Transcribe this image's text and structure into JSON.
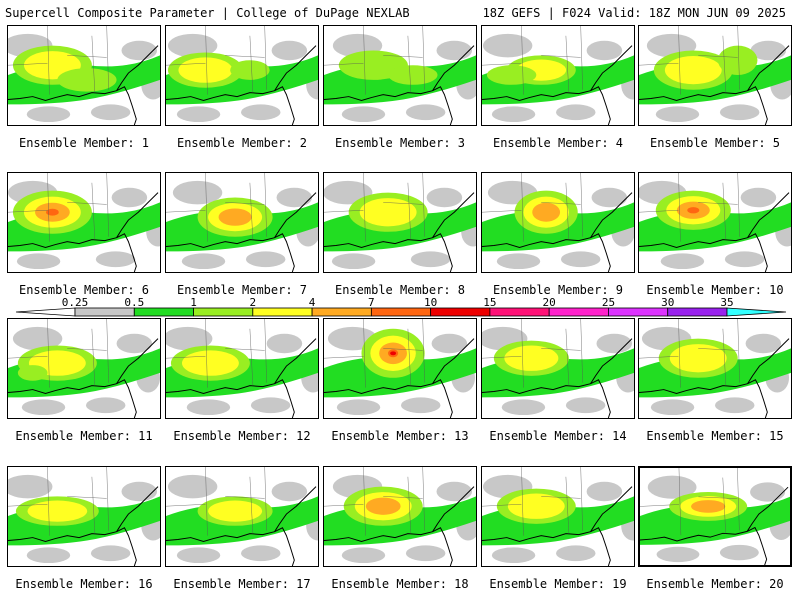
{
  "header": {
    "title": "Supercell Composite Parameter | College of DuPage NEXLAB",
    "valid": "18Z GEFS | F024 Valid: 18Z MON JUN 09 2025"
  },
  "colorbar": {
    "levels": [
      "0.25",
      "0.5",
      "1",
      "2",
      "4",
      "7",
      "10",
      "15",
      "20",
      "25",
      "30",
      "35"
    ],
    "colors": [
      "#c8c8c8",
      "#22dd22",
      "#99ee22",
      "#ffff22",
      "#ffaa22",
      "#ff6611",
      "#ee0000",
      "#ff1177",
      "#ff22cc",
      "#dd33ff",
      "#9922ee",
      "#aa66dd",
      "#33ffff"
    ]
  },
  "members": [
    {
      "label": "Ensemble Member: 1",
      "blobs": [
        [
          45,
          40,
          40,
          20,
          2
        ],
        [
          80,
          55,
          30,
          12,
          1
        ]
      ]
    },
    {
      "label": "Ensemble Member: 2",
      "blobs": [
        [
          40,
          45,
          38,
          18,
          2
        ],
        [
          85,
          45,
          20,
          10,
          1
        ]
      ]
    },
    {
      "label": "Ensemble Member: 3",
      "blobs": [
        [
          50,
          40,
          35,
          15,
          1
        ],
        [
          90,
          50,
          25,
          10,
          1
        ]
      ]
    },
    {
      "label": "Ensemble Member: 4",
      "blobs": [
        [
          60,
          45,
          35,
          15,
          2
        ],
        [
          30,
          50,
          25,
          10,
          1
        ]
      ]
    },
    {
      "label": "Ensemble Member: 5",
      "blobs": [
        [
          55,
          45,
          40,
          20,
          2
        ],
        [
          100,
          35,
          20,
          15,
          1
        ]
      ]
    },
    {
      "label": "Ensemble Member: 6",
      "blobs": [
        [
          45,
          40,
          40,
          22,
          4
        ]
      ]
    },
    {
      "label": "Ensemble Member: 7",
      "blobs": [
        [
          70,
          45,
          38,
          20,
          3
        ]
      ]
    },
    {
      "label": "Ensemble Member: 8",
      "blobs": [
        [
          65,
          40,
          40,
          20,
          2
        ]
      ]
    },
    {
      "label": "Ensemble Member: 9",
      "blobs": [
        [
          65,
          40,
          32,
          22,
          3
        ]
      ]
    },
    {
      "label": "Ensemble Member: 10",
      "blobs": [
        [
          55,
          38,
          38,
          20,
          4
        ]
      ]
    },
    {
      "label": "Ensemble Member: 11",
      "blobs": [
        [
          50,
          45,
          40,
          18,
          2
        ],
        [
          25,
          55,
          15,
          8,
          1
        ]
      ]
    },
    {
      "label": "Ensemble Member: 12",
      "blobs": [
        [
          45,
          45,
          40,
          18,
          2
        ]
      ]
    },
    {
      "label": "Ensemble Member: 13",
      "blobs": [
        [
          70,
          35,
          32,
          25,
          5
        ]
      ]
    },
    {
      "label": "Ensemble Member: 14",
      "blobs": [
        [
          50,
          40,
          38,
          18,
          2
        ]
      ]
    },
    {
      "label": "Ensemble Member: 15",
      "blobs": [
        [
          60,
          40,
          40,
          20,
          2
        ]
      ]
    },
    {
      "label": "Ensemble Member: 16",
      "blobs": [
        [
          50,
          45,
          42,
          15,
          2
        ]
      ]
    },
    {
      "label": "Ensemble Member: 17",
      "blobs": [
        [
          70,
          45,
          38,
          15,
          2
        ]
      ]
    },
    {
      "label": "Ensemble Member: 18",
      "blobs": [
        [
          60,
          40,
          40,
          20,
          3
        ]
      ]
    },
    {
      "label": "Ensemble Member: 19",
      "blobs": [
        [
          55,
          40,
          40,
          18,
          2
        ]
      ]
    },
    {
      "label": "Ensemble Member: 20",
      "blobs": [
        [
          70,
          40,
          40,
          15,
          3
        ]
      ]
    }
  ]
}
